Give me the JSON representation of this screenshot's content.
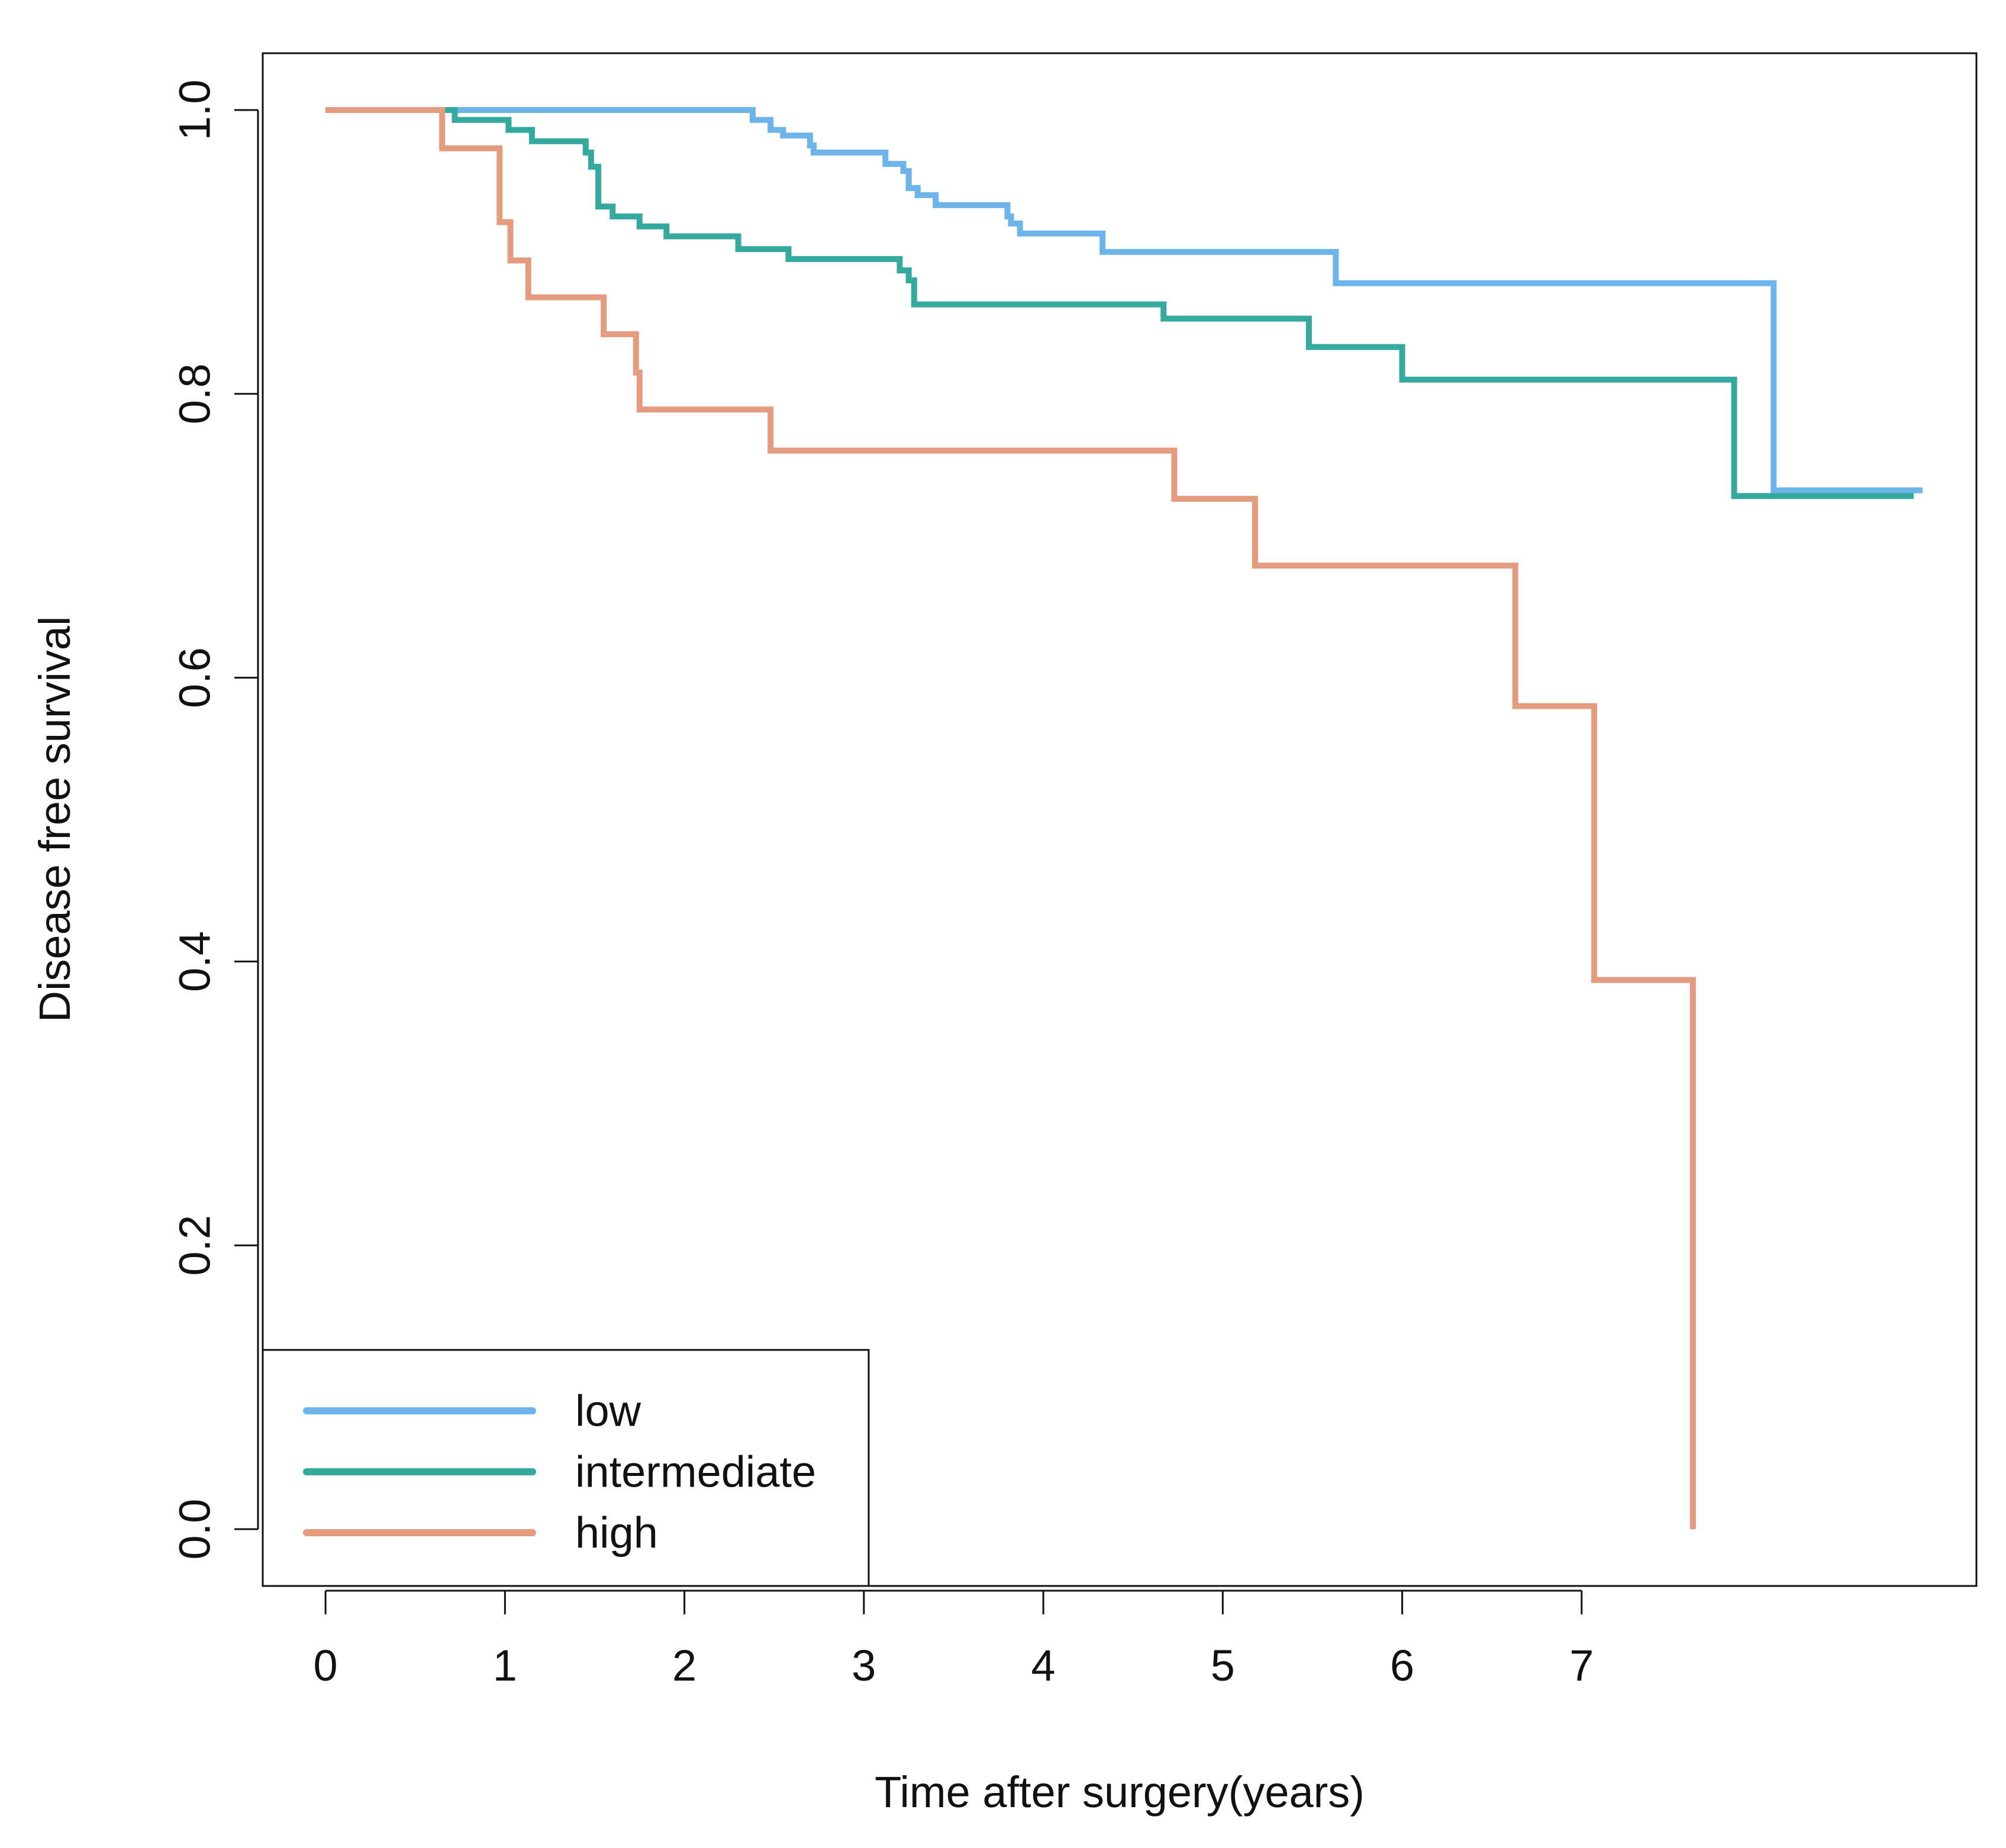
{
  "chart_data": {
    "type": "line",
    "title": "",
    "xlabel": "Time after surgery(years)",
    "ylabel": "Disease free survival",
    "xlim": [
      -0.35,
      9.2
    ],
    "ylim": [
      -0.04,
      1.04
    ],
    "x_ticks": [
      0,
      1,
      2,
      3,
      4,
      5,
      6,
      7
    ],
    "x_tick_labels": [
      "0",
      "1",
      "2",
      "3",
      "4",
      "5",
      "6",
      "7"
    ],
    "y_ticks": [
      0.0,
      0.2,
      0.4,
      0.6,
      0.8,
      1.0
    ],
    "y_tick_labels": [
      "0.0",
      "0.2",
      "0.4",
      "0.6",
      "0.8",
      "1.0"
    ],
    "grid": false,
    "legend_position": "bottom-left",
    "series": [
      {
        "name": "low",
        "color": "#6cb4ea",
        "x": [
          0,
          2.33,
          2.38,
          2.48,
          2.55,
          2.7,
          2.72,
          3.12,
          3.22,
          3.25,
          3.3,
          3.4,
          3.8,
          3.82,
          3.87,
          4.33,
          5.63,
          8.05,
          8.07,
          8.9
        ],
        "y": [
          1.0,
          1.0,
          0.993,
          0.986,
          0.982,
          0.975,
          0.97,
          0.962,
          0.957,
          0.945,
          0.94,
          0.933,
          0.925,
          0.92,
          0.913,
          0.9,
          0.878,
          0.878,
          0.732,
          0.732
        ]
      },
      {
        "name": "intermediate",
        "color": "#35a99d",
        "x": [
          0,
          0.67,
          0.72,
          1.02,
          1.15,
          1.45,
          1.48,
          1.52,
          1.6,
          1.75,
          1.9,
          2.3,
          2.58,
          3.2,
          3.25,
          3.28,
          4.67,
          5.48,
          6.0,
          7.82,
          7.85,
          8.85
        ],
        "y": [
          1.0,
          1.0,
          0.993,
          0.986,
          0.978,
          0.97,
          0.96,
          0.932,
          0.925,
          0.918,
          0.911,
          0.902,
          0.895,
          0.887,
          0.88,
          0.863,
          0.853,
          0.833,
          0.81,
          0.81,
          0.728,
          0.728
        ]
      },
      {
        "name": "high",
        "color": "#e59b7e",
        "x": [
          0,
          0.63,
          0.65,
          0.95,
          0.97,
          1.03,
          1.13,
          1.55,
          1.73,
          1.75,
          2.48,
          4.73,
          5.18,
          6.63,
          7.07,
          7.62,
          7.62
        ],
        "y": [
          1.0,
          1.0,
          0.973,
          0.973,
          0.921,
          0.894,
          0.868,
          0.842,
          0.815,
          0.789,
          0.76,
          0.726,
          0.679,
          0.58,
          0.387,
          0.387,
          0.0
        ]
      }
    ]
  }
}
